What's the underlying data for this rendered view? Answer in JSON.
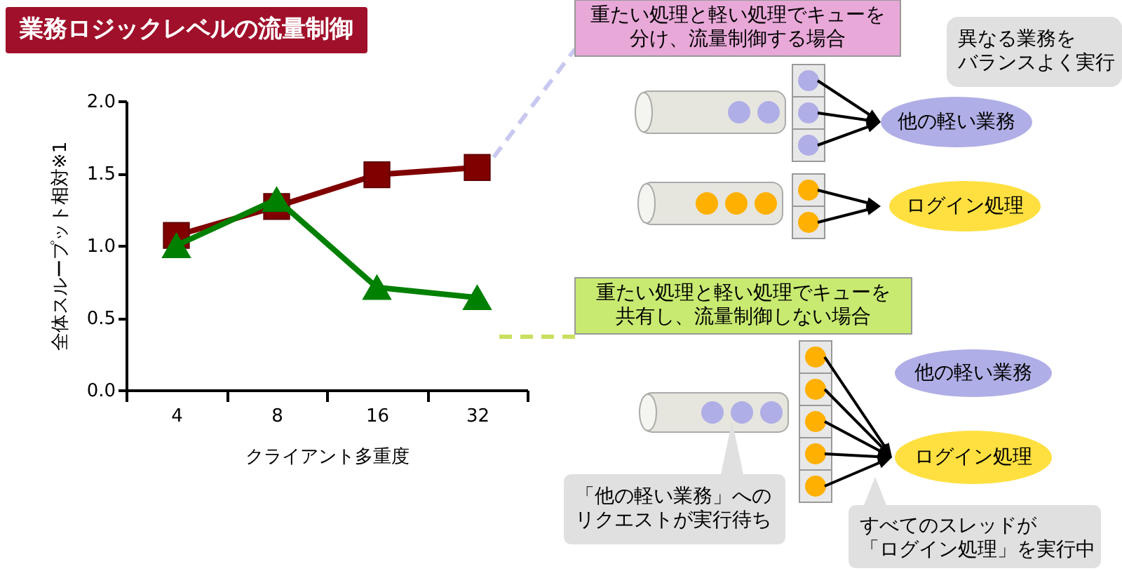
{
  "chart_data": {
    "type": "line",
    "title": "業務ロジックレベルの流量制御",
    "xlabel": "クライアント多重度",
    "ylabel": "全体スループット相対※1",
    "categories": [
      "4",
      "8",
      "16",
      "32"
    ],
    "series": [
      {
        "color": "#800000",
        "marker": "square",
        "values": [
          1.07,
          1.27,
          1.49,
          1.54
        ]
      },
      {
        "color": "#008000",
        "marker": "triangle",
        "values": [
          1.0,
          1.32,
          0.71,
          0.64
        ]
      }
    ],
    "ylim": [
      0,
      2
    ],
    "yticks": [
      {
        "value": 0,
        "label": "0.0"
      },
      0.5,
      {
        "value": 1,
        "label": "1.0"
      },
      1.5,
      {
        "value": 2,
        "label": "2.0"
      }
    ],
    "grid": false,
    "line_style": "solid",
    "annotations": [
      "重たい処理と軽い処理でキューを分け、流量制御する場合",
      "異なる業務をバランスよく実行",
      "他の軽い業務",
      "ログイン処理",
      "重たい処理と軽い処理でキューを共有し、流量制御しない場合",
      "他の軽い業務",
      "ログイン処理",
      "「他の軽い業務」へのリクエストが実行待ち",
      "すべてのスレッドが「ログイン処理」を実行中"
    ]
  }
}
